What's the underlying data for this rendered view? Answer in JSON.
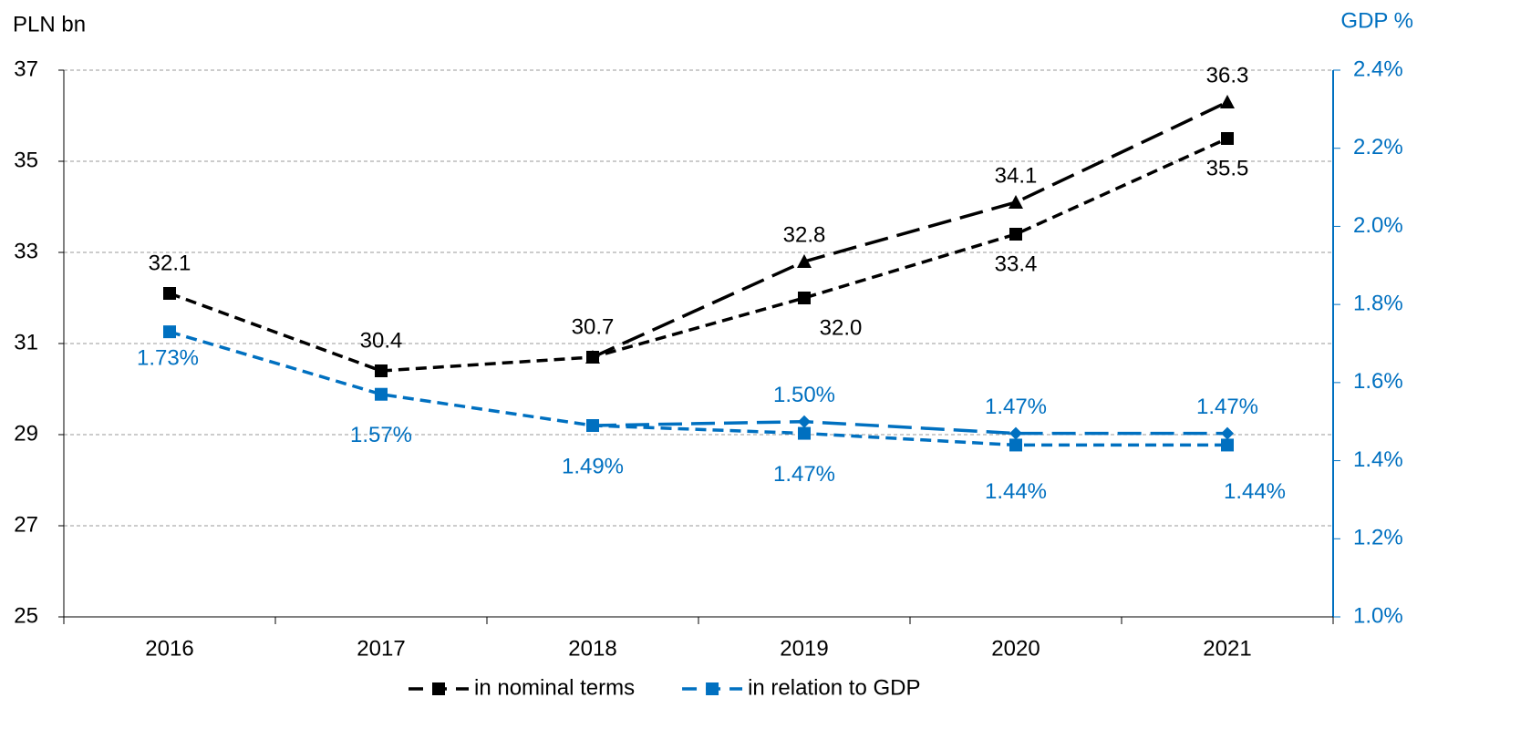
{
  "chart_data": {
    "type": "line",
    "y_label": "PLN bn",
    "y2_label": "GDP %",
    "categories": [
      "2016",
      "2017",
      "2018",
      "2019",
      "2020",
      "2021"
    ],
    "series": [
      {
        "name": "in nominal terms",
        "color": "#000000",
        "marker": "square",
        "values": [
          32.1,
          30.4,
          30.7,
          32.0,
          33.4,
          35.5
        ],
        "value_labels": [
          "32.1",
          "30.4",
          "30.7",
          "32.0",
          "33.4",
          "35.5"
        ]
      },
      {
        "color": "#000000",
        "marker": "triangle",
        "values": [
          null,
          null,
          30.7,
          32.8,
          34.1,
          36.3
        ],
        "value_labels": [
          null,
          null,
          null,
          "32.8",
          "34.1",
          "36.3"
        ]
      },
      {
        "name": "in relation to GDP",
        "color": "#0070c0",
        "marker": "square",
        "axis": "y2",
        "values": [
          1.73,
          1.57,
          1.49,
          1.47,
          1.44,
          1.44
        ],
        "value_labels": [
          "1.73%",
          "1.57%",
          "1.49%",
          "1.47%",
          "1.44%",
          "1.44%"
        ]
      },
      {
        "color": "#0070c0",
        "marker": "diamond",
        "axis": "y2",
        "values": [
          null,
          null,
          1.49,
          1.5,
          1.47,
          1.47
        ],
        "value_labels": [
          null,
          null,
          null,
          "1.50%",
          "1.47%",
          "1.47%"
        ]
      }
    ],
    "ylim": [
      25,
      37
    ],
    "yticks": [
      25,
      27,
      29,
      31,
      33,
      35,
      37
    ],
    "y2lim": [
      1.0,
      2.4
    ],
    "y2ticks": [
      {
        "value": 1.0,
        "label": "1.0%"
      },
      {
        "value": 1.2,
        "label": "1.2%"
      },
      {
        "value": 1.4,
        "label": "1.4%"
      },
      {
        "value": 1.6,
        "label": "1.6%"
      },
      {
        "value": 1.8,
        "label": "1.8%"
      },
      {
        "value": 2.0,
        "label": "2.0%"
      },
      {
        "value": 2.2,
        "label": "2.2%"
      },
      {
        "value": 2.4,
        "label": "2.4%"
      }
    ],
    "grid": true,
    "legend": "bottom"
  }
}
